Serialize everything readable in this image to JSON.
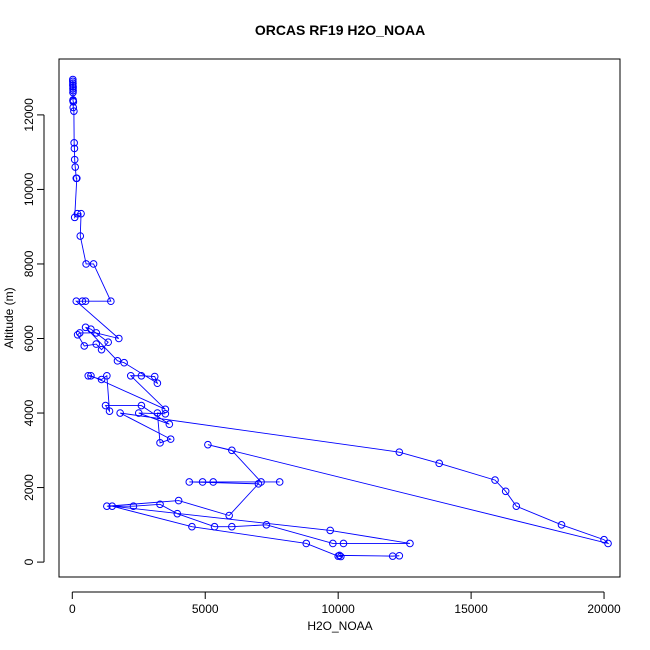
{
  "chart_data": {
    "type": "line",
    "title": "ORCAS RF19 H2O_NOAA",
    "xlabel": "H2O_NOAA",
    "ylabel": "Altitude (m)",
    "xlim": [
      -500,
      20600
    ],
    "ylim": [
      -400,
      13500
    ],
    "xticks": [
      0,
      5000,
      10000,
      15000,
      20000
    ],
    "yticks": [
      0,
      2000,
      4000,
      6000,
      8000,
      10000,
      12000
    ],
    "xtick_labels": [
      "0",
      "5000",
      "10000",
      "15000",
      "20000"
    ],
    "ytick_labels": [
      "0",
      "2000",
      "4000",
      "6000",
      "8000",
      "10000",
      "12000"
    ],
    "grid": false,
    "marker": "open-circle",
    "series": [
      {
        "color": "#0000ff",
        "points": [
          [
            20,
            12950
          ],
          [
            20,
            12900
          ],
          [
            25,
            12850
          ],
          [
            20,
            12800
          ],
          [
            30,
            12750
          ],
          [
            25,
            12700
          ],
          [
            30,
            12650
          ],
          [
            25,
            12600
          ],
          [
            30,
            12400
          ],
          [
            25,
            12380
          ],
          [
            40,
            12350
          ],
          [
            35,
            12200
          ],
          [
            60,
            12100
          ],
          [
            70,
            11250
          ],
          [
            80,
            11100
          ],
          [
            90,
            10800
          ],
          [
            110,
            10600
          ],
          [
            150,
            10300
          ],
          [
            170,
            10300
          ],
          [
            90,
            9250
          ],
          [
            190,
            9350
          ],
          [
            330,
            9350
          ],
          [
            300,
            8750
          ],
          [
            520,
            8000
          ],
          [
            800,
            8000
          ],
          [
            1450,
            7000
          ],
          [
            500,
            7000
          ],
          [
            380,
            7000
          ],
          [
            150,
            7000
          ],
          [
            1750,
            6000
          ],
          [
            900,
            6150
          ],
          [
            280,
            6150
          ],
          [
            200,
            6100
          ],
          [
            450,
            5800
          ],
          [
            900,
            5850
          ],
          [
            1100,
            5700
          ],
          [
            1350,
            5900
          ],
          [
            700,
            6250
          ],
          [
            500,
            6300
          ],
          [
            1700,
            5400
          ],
          [
            1950,
            5350
          ],
          [
            3200,
            4800
          ],
          [
            3100,
            4980
          ],
          [
            2600,
            5000
          ],
          [
            2200,
            5000
          ],
          [
            3500,
            4100
          ],
          [
            700,
            5000
          ],
          [
            600,
            5000
          ],
          [
            1100,
            4900
          ],
          [
            1300,
            5000
          ],
          [
            1400,
            4050
          ],
          [
            1250,
            4200
          ],
          [
            2600,
            4200
          ],
          [
            3650,
            3700
          ],
          [
            2500,
            4000
          ],
          [
            3500,
            3980
          ],
          [
            3200,
            4000
          ],
          [
            3300,
            3200
          ],
          [
            3700,
            3300
          ],
          [
            1800,
            4000
          ],
          [
            12300,
            2950
          ],
          [
            13800,
            2650
          ],
          [
            15900,
            2200
          ],
          [
            16300,
            1900
          ],
          [
            16700,
            1500
          ],
          [
            18400,
            1000
          ],
          [
            20000,
            600
          ],
          [
            20150,
            500
          ],
          [
            5100,
            3150
          ],
          [
            6000,
            3000
          ],
          [
            7100,
            2150
          ],
          [
            7800,
            2150
          ],
          [
            5300,
            2150
          ],
          [
            4900,
            2150
          ],
          [
            4400,
            2150
          ],
          [
            7000,
            2100
          ],
          [
            5900,
            1250
          ],
          [
            4000,
            1650
          ],
          [
            1300,
            1500
          ],
          [
            2300,
            1500
          ],
          [
            3300,
            1550
          ],
          [
            3950,
            1300
          ],
          [
            5350,
            950
          ],
          [
            6000,
            950
          ],
          [
            7300,
            1000
          ],
          [
            9800,
            500
          ],
          [
            10200,
            500
          ],
          [
            12700,
            500
          ],
          [
            9700,
            850
          ],
          [
            1500,
            1500
          ],
          [
            4500,
            950
          ],
          [
            8800,
            500
          ],
          [
            10000,
            160
          ],
          [
            10100,
            150
          ],
          [
            10050,
            180
          ],
          [
            12050,
            160
          ],
          [
            12300,
            170
          ]
        ]
      }
    ]
  }
}
